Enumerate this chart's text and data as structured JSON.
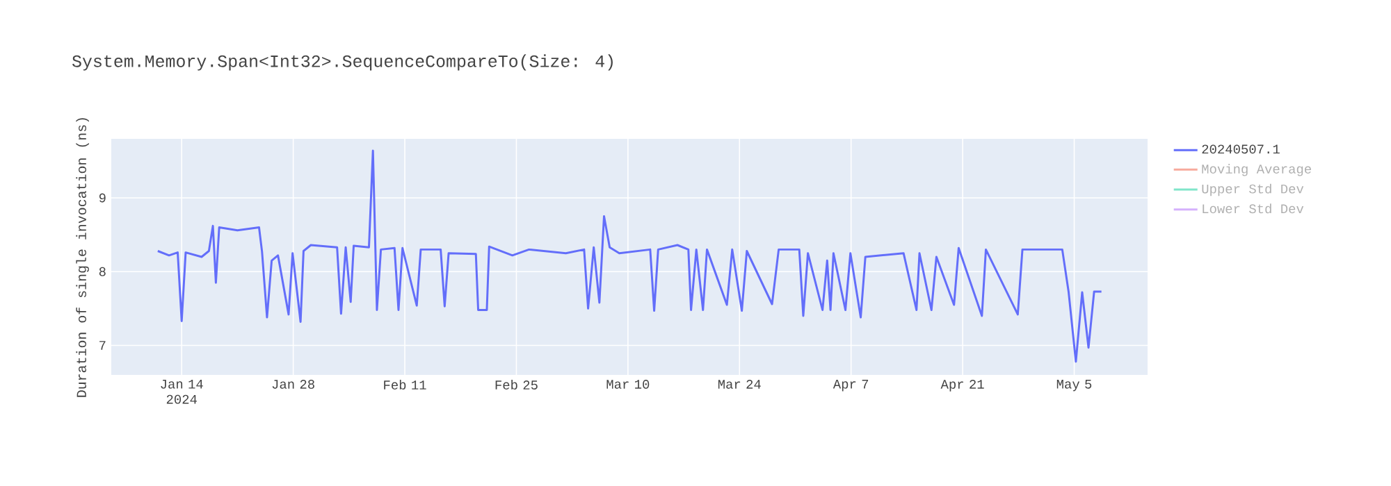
{
  "chart_data": {
    "type": "line",
    "title": "System.Memory.Span<Int32>.SequenceCompareTo(Size: 4)",
    "ylabel": "Duration of single invocation (ns)",
    "x": [
      "2024-01-11T00:00",
      "2024-01-12T10:00",
      "2024-01-13T12:00",
      "2024-01-14T00:00",
      "2024-01-14T12:00",
      "2024-01-16T12:00",
      "2024-01-17T10:00",
      "2024-01-17T22:00",
      "2024-01-18T07:00",
      "2024-01-18T17:00",
      "2024-01-21T00:00",
      "2024-01-23T17:00",
      "2024-01-24T02:00",
      "2024-01-24T17:00",
      "2024-01-25T07:00",
      "2024-01-26T02:00",
      "2024-01-27T10:00",
      "2024-01-27T22:00",
      "2024-01-28T22:00",
      "2024-01-29T07:00",
      "2024-01-30T05:00",
      "2024-02-02T12:00",
      "2024-02-03T00:00",
      "2024-02-03T14:00",
      "2024-02-04T05:00",
      "2024-02-04T14:00",
      "2024-02-06T12:00",
      "2024-02-07T00:00",
      "2024-02-07T12:00",
      "2024-02-08T00:00",
      "2024-02-09T17:00",
      "2024-02-10T05:00",
      "2024-02-10T17:00",
      "2024-02-12T12:00",
      "2024-02-13T00:00",
      "2024-02-15T12:00",
      "2024-02-16T00:00",
      "2024-02-16T12:00",
      "2024-02-19T22:00",
      "2024-02-20T05:00",
      "2024-02-21T07:00",
      "2024-02-21T14:00",
      "2024-02-24T12:00",
      "2024-02-26T14:00",
      "2024-03-02T05:00",
      "2024-03-04T12:00",
      "2024-03-05T00:00",
      "2024-03-05T17:00",
      "2024-03-06T10:00",
      "2024-03-07T00:00",
      "2024-03-07T17:00",
      "2024-03-08T22:00",
      "2024-03-12T19:00",
      "2024-03-13T07:00",
      "2024-03-13T19:00",
      "2024-03-16T05:00",
      "2024-03-17T14:00",
      "2024-03-17T22:00",
      "2024-03-18T14:00",
      "2024-03-19T10:00",
      "2024-03-19T22:00",
      "2024-03-22T10:00",
      "2024-03-23T02:00",
      "2024-03-24T07:00",
      "2024-03-24T22:00",
      "2024-03-28T02:00",
      "2024-03-28T22:00",
      "2024-03-31T12:00",
      "2024-04-01T00:00",
      "2024-04-01T14:00",
      "2024-04-03T10:00",
      "2024-04-04T00:00",
      "2024-04-04T10:00",
      "2024-04-04T19:00",
      "2024-04-06T07:00",
      "2024-04-06T22:00",
      "2024-04-08T05:00",
      "2024-04-08T19:00",
      "2024-04-13T14:00",
      "2024-04-15T05:00",
      "2024-04-15T14:00",
      "2024-04-17T02:00",
      "2024-04-17T17:00",
      "2024-04-19T22:00",
      "2024-04-20T12:00",
      "2024-04-23T10:00",
      "2024-04-23T22:00",
      "2024-04-27T22:00",
      "2024-04-28T12:00",
      "2024-05-03T12:00",
      "2024-05-04T07:00",
      "2024-05-05T05:00",
      "2024-05-06T00:00",
      "2024-05-06T19:00",
      "2024-05-07T12:00",
      "2024-05-08T10:00"
    ],
    "series": [
      {
        "name": "20240507.1",
        "color": "#636efa",
        "values": [
          8.28,
          8.22,
          8.26,
          7.33,
          8.26,
          8.2,
          8.28,
          8.62,
          7.85,
          8.6,
          8.56,
          8.6,
          8.27,
          7.38,
          8.15,
          8.22,
          7.42,
          8.25,
          7.32,
          8.28,
          8.36,
          8.33,
          7.43,
          8.33,
          7.59,
          8.35,
          8.33,
          9.64,
          7.48,
          8.3,
          8.32,
          7.48,
          8.32,
          7.54,
          8.3,
          8.3,
          7.53,
          8.25,
          8.24,
          7.48,
          7.48,
          8.34,
          8.22,
          8.3,
          8.25,
          8.3,
          7.5,
          8.33,
          7.58,
          8.75,
          8.33,
          8.25,
          8.3,
          7.47,
          8.3,
          8.36,
          8.3,
          7.48,
          8.3,
          7.48,
          8.3,
          7.55,
          8.3,
          7.47,
          8.28,
          7.56,
          8.3,
          8.3,
          7.4,
          8.25,
          7.48,
          8.15,
          7.48,
          8.25,
          7.48,
          8.25,
          7.38,
          8.2,
          8.25,
          7.48,
          8.25,
          7.48,
          8.2,
          7.55,
          8.32,
          7.4,
          8.3,
          7.42,
          8.3,
          8.3,
          7.73,
          6.78,
          7.72,
          6.97,
          7.73,
          7.73
        ]
      },
      {
        "name": "Moving Average",
        "color": "#f7aa9d",
        "values": [
          null,
          null,
          null,
          null,
          null,
          null,
          null,
          null,
          null,
          null,
          null,
          null,
          null,
          null,
          null,
          null,
          null,
          null,
          null,
          null,
          null,
          null,
          null,
          null,
          null,
          null,
          null,
          null,
          null,
          null,
          null,
          null,
          null,
          null,
          null,
          null,
          null,
          null,
          null,
          null,
          null,
          null,
          null,
          null,
          null,
          null,
          null,
          null,
          null,
          null,
          null,
          null,
          null,
          null,
          null,
          null,
          null,
          null,
          null,
          null,
          null,
          null,
          null,
          null,
          null,
          null,
          null,
          null,
          null,
          null,
          null,
          null,
          null,
          null,
          null,
          null,
          null,
          null,
          null,
          null,
          null,
          null,
          null,
          null,
          null,
          null,
          null,
          null,
          null,
          null,
          null,
          null,
          null,
          null,
          null,
          null
        ]
      },
      {
        "name": "Upper Std Dev",
        "color": "#80e5ca",
        "values": [
          null,
          null,
          null,
          null,
          null,
          null,
          null,
          null,
          null,
          null,
          null,
          null,
          null,
          null,
          null,
          null,
          null,
          null,
          null,
          null,
          null,
          null,
          null,
          null,
          null,
          null,
          null,
          null,
          null,
          null,
          null,
          null,
          null,
          null,
          null,
          null,
          null,
          null,
          null,
          null,
          null,
          null,
          null,
          null,
          null,
          null,
          null,
          null,
          null,
          null,
          null,
          null,
          null,
          null,
          null,
          null,
          null,
          null,
          null,
          null,
          null,
          null,
          null,
          null,
          null,
          null,
          null,
          null,
          null,
          null,
          null,
          null,
          null,
          null,
          null,
          null,
          null,
          null,
          null,
          null,
          null,
          null,
          null,
          null,
          null,
          null,
          null,
          null,
          null,
          null,
          null,
          null,
          null,
          null,
          null,
          null
        ]
      },
      {
        "name": "Lower Std Dev",
        "color": "#d5b1fc",
        "values": [
          null,
          null,
          null,
          null,
          null,
          null,
          null,
          null,
          null,
          null,
          null,
          null,
          null,
          null,
          null,
          null,
          null,
          null,
          null,
          null,
          null,
          null,
          null,
          null,
          null,
          null,
          null,
          null,
          null,
          null,
          null,
          null,
          null,
          null,
          null,
          null,
          null,
          null,
          null,
          null,
          null,
          null,
          null,
          null,
          null,
          null,
          null,
          null,
          null,
          null,
          null,
          null,
          null,
          null,
          null,
          null,
          null,
          null,
          null,
          null,
          null,
          null,
          null,
          null,
          null,
          null,
          null,
          null,
          null,
          null,
          null,
          null,
          null,
          null,
          null,
          null,
          null,
          null,
          null,
          null,
          null,
          null,
          null,
          null,
          null,
          null,
          null,
          null,
          null,
          null,
          null,
          null,
          null,
          null,
          null,
          null
        ]
      }
    ],
    "xlim": [
      "2024-01-05T04:00",
      "2024-05-14T05:00"
    ],
    "xticks": [
      {
        "value": "2024-01-14",
        "label": "Jan 14 2024"
      },
      {
        "value": "2024-01-28",
        "label": "Jan 28"
      },
      {
        "value": "2024-02-11",
        "label": "Feb 11"
      },
      {
        "value": "2024-02-25",
        "label": "Feb 25"
      },
      {
        "value": "2024-03-10",
        "label": "Mar 10"
      },
      {
        "value": "2024-03-24",
        "label": "Mar 24"
      },
      {
        "value": "2024-04-07",
        "label": "Apr 7"
      },
      {
        "value": "2024-04-21",
        "label": "Apr 21"
      },
      {
        "value": "2024-05-05",
        "label": "May 5"
      }
    ],
    "ylim": [
      6.6,
      9.8
    ],
    "yticks": [
      7,
      8,
      9
    ],
    "grid": true,
    "legend": "right",
    "marker": "none",
    "line_style": "solid"
  }
}
